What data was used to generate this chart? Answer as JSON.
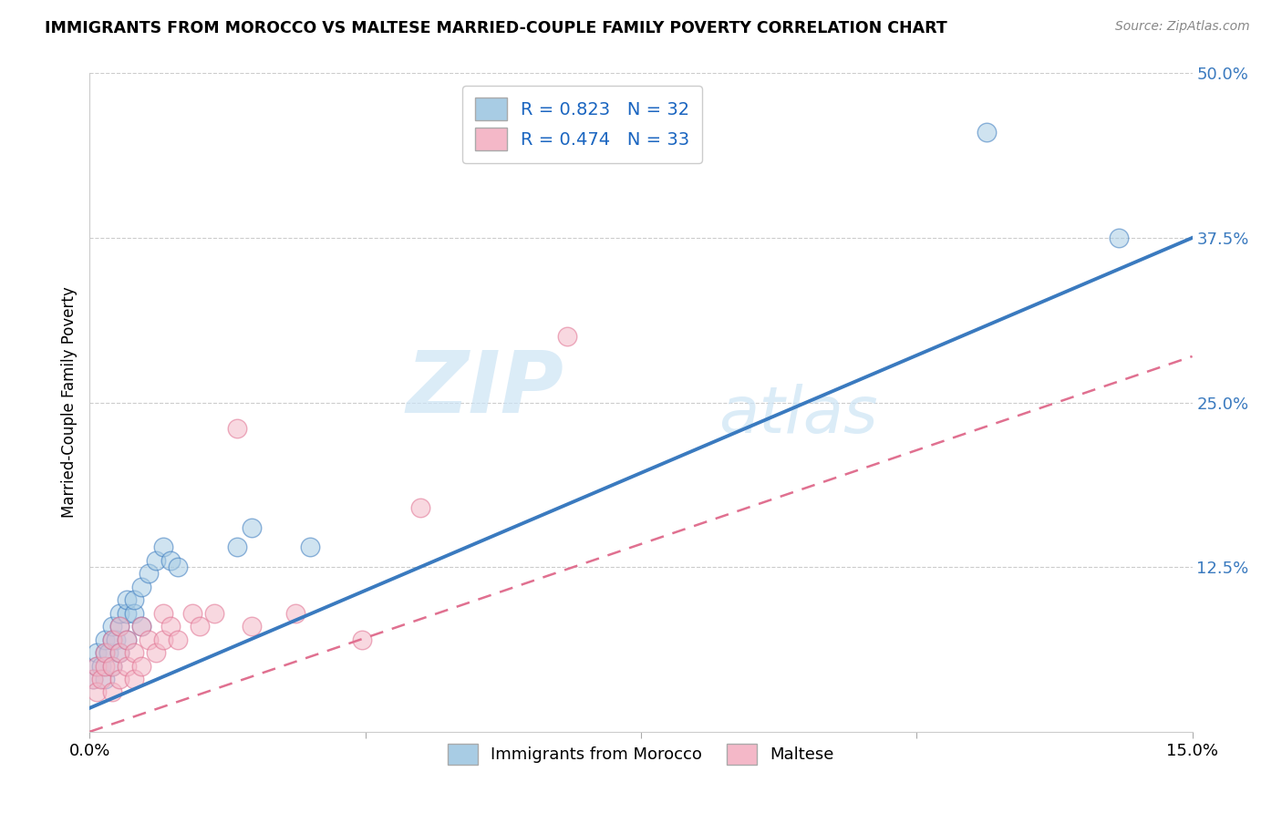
{
  "title": "IMMIGRANTS FROM MOROCCO VS MALTESE MARRIED-COUPLE FAMILY POVERTY CORRELATION CHART",
  "source": "Source: ZipAtlas.com",
  "ylabel": "Married-Couple Family Poverty",
  "xlim": [
    0.0,
    0.15
  ],
  "ylim": [
    0.0,
    0.5
  ],
  "ytick_labels": [
    "12.5%",
    "25.0%",
    "37.5%",
    "50.0%"
  ],
  "ytick_positions": [
    0.125,
    0.25,
    0.375,
    0.5
  ],
  "xtick_positions": [
    0.0,
    0.0375,
    0.075,
    0.1125,
    0.15
  ],
  "xtick_labels": [
    "0.0%",
    "",
    "",
    "",
    "15.0%"
  ],
  "legend_labels": [
    "Immigrants from Morocco",
    "Maltese"
  ],
  "r_morocco": 0.823,
  "n_morocco": 32,
  "r_maltese": 0.474,
  "n_maltese": 33,
  "color_blue": "#a8cce4",
  "color_pink": "#f4b8c8",
  "line_blue": "#3a7abf",
  "line_pink": "#e07090",
  "watermark_zip": "ZIP",
  "watermark_atlas": "atlas",
  "morocco_x": [
    0.0005,
    0.001,
    0.001,
    0.0015,
    0.002,
    0.002,
    0.002,
    0.0025,
    0.003,
    0.003,
    0.003,
    0.0035,
    0.004,
    0.004,
    0.004,
    0.005,
    0.005,
    0.005,
    0.006,
    0.006,
    0.007,
    0.007,
    0.008,
    0.009,
    0.01,
    0.011,
    0.012,
    0.02,
    0.022,
    0.03,
    0.122,
    0.14
  ],
  "morocco_y": [
    0.04,
    0.05,
    0.06,
    0.05,
    0.04,
    0.06,
    0.07,
    0.06,
    0.05,
    0.07,
    0.08,
    0.07,
    0.06,
    0.08,
    0.09,
    0.07,
    0.09,
    0.1,
    0.09,
    0.1,
    0.08,
    0.11,
    0.12,
    0.13,
    0.14,
    0.13,
    0.125,
    0.14,
    0.155,
    0.14,
    0.455,
    0.375
  ],
  "maltese_x": [
    0.0005,
    0.001,
    0.001,
    0.0015,
    0.002,
    0.002,
    0.003,
    0.003,
    0.003,
    0.004,
    0.004,
    0.004,
    0.005,
    0.005,
    0.006,
    0.006,
    0.007,
    0.007,
    0.008,
    0.009,
    0.01,
    0.01,
    0.011,
    0.012,
    0.014,
    0.015,
    0.017,
    0.02,
    0.022,
    0.028,
    0.037,
    0.045,
    0.065
  ],
  "maltese_y": [
    0.04,
    0.03,
    0.05,
    0.04,
    0.05,
    0.06,
    0.03,
    0.05,
    0.07,
    0.04,
    0.06,
    0.08,
    0.05,
    0.07,
    0.04,
    0.06,
    0.05,
    0.08,
    0.07,
    0.06,
    0.07,
    0.09,
    0.08,
    0.07,
    0.09,
    0.08,
    0.09,
    0.23,
    0.08,
    0.09,
    0.07,
    0.17,
    0.3
  ],
  "blue_line_x0": 0.0,
  "blue_line_y0": 0.018,
  "blue_line_x1": 0.15,
  "blue_line_y1": 0.375,
  "pink_line_x0": 0.0,
  "pink_line_y0": 0.0,
  "pink_line_x1": 0.15,
  "pink_line_y1": 0.285
}
